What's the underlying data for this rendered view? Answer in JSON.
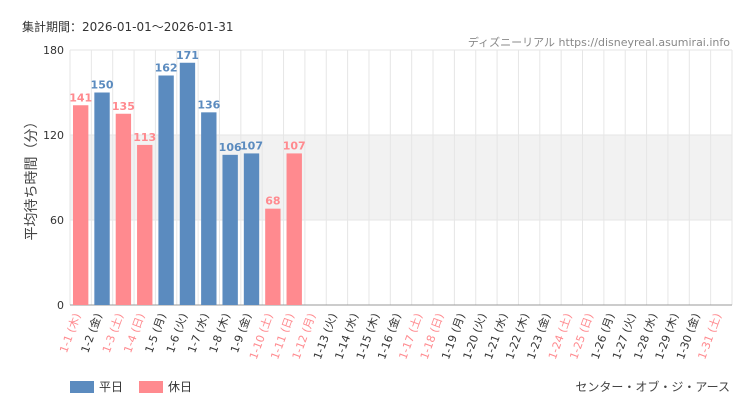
{
  "header": {
    "period_label": "集計期間：2026-01-01〜2026-01-31",
    "source": "ディズニーリアル https://disneyreal.asumirai.info"
  },
  "footer": {
    "attraction": "センター・オブ・ジ・アース"
  },
  "legend": [
    {
      "label": "平日",
      "color": "#5b8bbf"
    },
    {
      "label": "休日",
      "color": "#ff8a8f"
    }
  ],
  "colors": {
    "weekday": "#5b8bbf",
    "holiday": "#ff8a8f",
    "weekday_text": "#5b8bbf",
    "holiday_text": "#ff8a8f",
    "band": "#f2f2f2",
    "grid": "#e6e6e6"
  },
  "chart_data": {
    "type": "bar",
    "ylabel": "平均待ち時間（分）",
    "ylim": [
      0,
      180
    ],
    "yticks": [
      0,
      60,
      120,
      180
    ],
    "highlight_band": [
      60,
      120
    ],
    "grid": true,
    "legend_position": "bottom-left",
    "categories": [
      "1-1 (木)",
      "1-2 (金)",
      "1-3 (土)",
      "1-4 (日)",
      "1-5 (月)",
      "1-6 (火)",
      "1-7 (水)",
      "1-8 (木)",
      "1-9 (金)",
      "1-10 (土)",
      "1-11 (日)",
      "1-12 (月)",
      "1-13 (火)",
      "1-14 (水)",
      "1-15 (木)",
      "1-16 (金)",
      "1-17 (土)",
      "1-18 (日)",
      "1-19 (月)",
      "1-20 (火)",
      "1-21 (水)",
      "1-22 (木)",
      "1-23 (金)",
      "1-24 (土)",
      "1-25 (日)",
      "1-26 (月)",
      "1-27 (火)",
      "1-28 (水)",
      "1-29 (木)",
      "1-30 (金)",
      "1-31 (土)"
    ],
    "day_type": [
      "holiday",
      "weekday",
      "holiday",
      "holiday",
      "weekday",
      "weekday",
      "weekday",
      "weekday",
      "weekday",
      "holiday",
      "holiday",
      "holiday",
      "weekday",
      "weekday",
      "weekday",
      "weekday",
      "holiday",
      "holiday",
      "weekday",
      "weekday",
      "weekday",
      "weekday",
      "weekday",
      "holiday",
      "holiday",
      "weekday",
      "weekday",
      "weekday",
      "weekday",
      "weekday",
      "holiday"
    ],
    "series": [
      {
        "name": "平日",
        "values": [
          null,
          150,
          null,
          null,
          162,
          171,
          136,
          106,
          107,
          null,
          null,
          null,
          null,
          null,
          null,
          null,
          null,
          null,
          null,
          null,
          null,
          null,
          null,
          null,
          null,
          null,
          null,
          null,
          null,
          null,
          null
        ]
      },
      {
        "name": "休日",
        "values": [
          141,
          null,
          135,
          113,
          null,
          null,
          null,
          null,
          null,
          68,
          107,
          null,
          null,
          null,
          null,
          null,
          null,
          null,
          null,
          null,
          null,
          null,
          null,
          null,
          null,
          null,
          null,
          null,
          null,
          null,
          null
        ]
      }
    ]
  }
}
